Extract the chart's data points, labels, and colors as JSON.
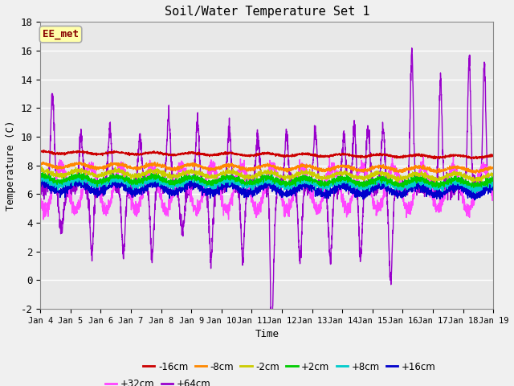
{
  "title": "Soil/Water Temperature Set 1",
  "xlabel": "Time",
  "ylabel": "Temperature (C)",
  "xlim": [
    0,
    15
  ],
  "ylim": [
    -2,
    18
  ],
  "yticks": [
    -2,
    0,
    2,
    4,
    6,
    8,
    10,
    12,
    14,
    16,
    18
  ],
  "xtick_labels": [
    "Jan 4",
    "Jan 5",
    "Jan 6",
    "Jan 7",
    "Jan 8",
    "Jan 9",
    "Jan 10",
    "Jan 11",
    "Jan 12",
    "Jan 13",
    "Jan 14",
    "Jan 15",
    "Jan 16",
    "Jan 17",
    "Jan 18",
    "Jan 19"
  ],
  "colors": {
    "-16cm": "#cc0000",
    "-8cm": "#ff8800",
    "-2cm": "#cccc00",
    "+2cm": "#00cc00",
    "+8cm": "#00cccc",
    "+16cm": "#0000cc",
    "+32cm": "#ff44ff",
    "+64cm": "#9900cc"
  },
  "legend_label": "EE_met",
  "legend_bg": "#ffffaa",
  "legend_border": "#aaaaaa",
  "bg_color": "#e8e8e8",
  "grid_color": "#ffffff",
  "fig_bg": "#f0f0f0"
}
